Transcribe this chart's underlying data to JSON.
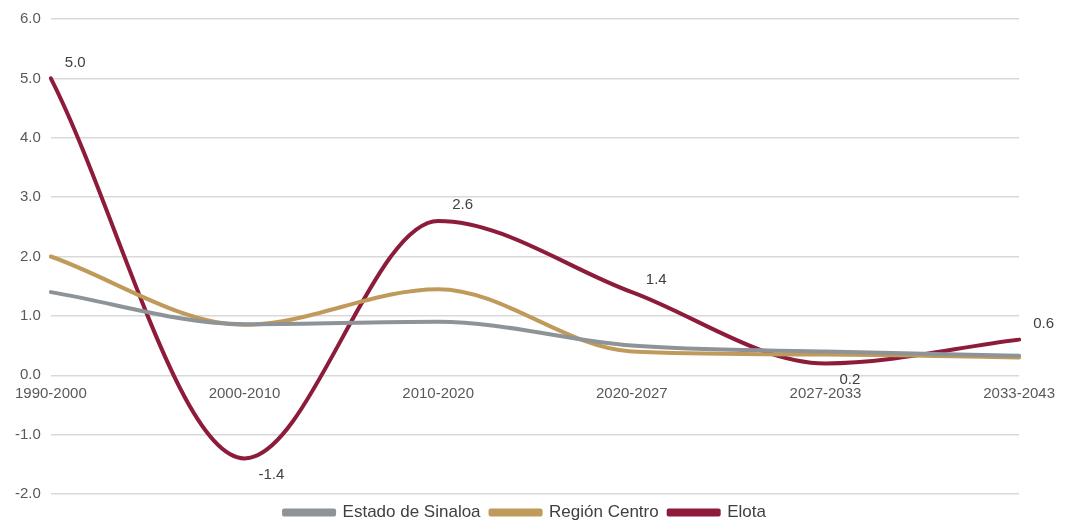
{
  "chart_data": {
    "type": "line",
    "categories": [
      "1990-2000",
      "2000-2010",
      "2010-2020",
      "2020-2027",
      "2027-2033",
      "2033-2043"
    ],
    "series": [
      {
        "name": "Estado de Sinaloa",
        "color": "#8e9398",
        "values": [
          1.4,
          0.86,
          0.9,
          0.5,
          0.4,
          0.33
        ]
      },
      {
        "name": "Región Centro",
        "color": "#c09a5b",
        "values": [
          2.0,
          0.85,
          1.45,
          0.4,
          0.35,
          0.3
        ]
      },
      {
        "name": "Elota",
        "color": "#8c1c3a",
        "values": [
          5.0,
          -1.4,
          2.6,
          1.4,
          0.2,
          0.6
        ],
        "value_labels": [
          "5.0",
          "-1.4",
          "2.6",
          "1.4",
          "0.2",
          "0.6"
        ]
      }
    ],
    "ylim": [
      -2,
      6
    ],
    "yticks": [
      {
        "value": -2,
        "label": "-2.0"
      },
      {
        "value": -1,
        "label": "-1.0"
      },
      {
        "value": 0,
        "label": "0.0"
      },
      {
        "value": 1,
        "label": "1.0"
      },
      {
        "value": 2,
        "label": "2.0"
      },
      {
        "value": 3,
        "label": "3.0"
      },
      {
        "value": 4,
        "label": "4.0"
      },
      {
        "value": 5,
        "label": "5.0"
      },
      {
        "value": 6,
        "label": "6.0"
      }
    ],
    "grid": "y",
    "legend": "bottom",
    "marker": "none",
    "line_style": "solid"
  }
}
